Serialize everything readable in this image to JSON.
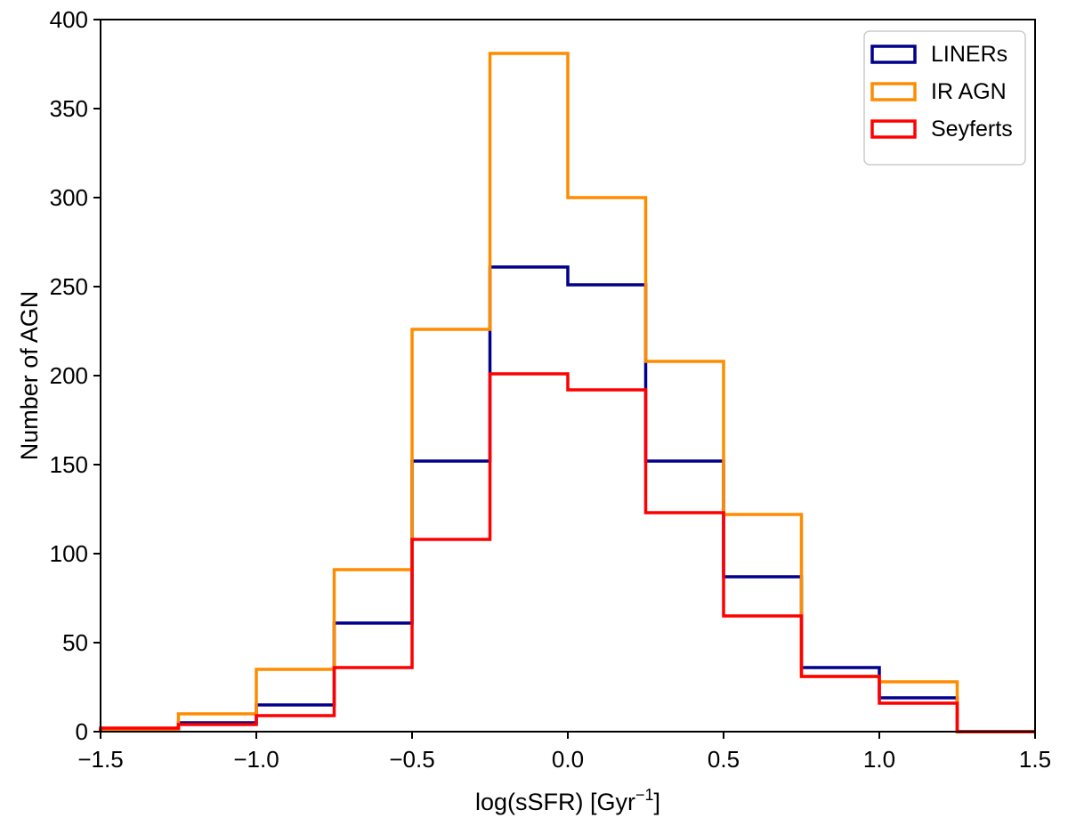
{
  "chart_data": {
    "type": "histogram",
    "title": "",
    "xlabel": "log(sSFR) [Gyr",
    "xlabel_superscript": "−1",
    "xlabel_suffix": "]",
    "ylabel": "Number of AGN",
    "xlim": [
      -1.5,
      1.5
    ],
    "ylim": [
      0,
      400
    ],
    "xticks": [
      -1.5,
      -1.0,
      -0.5,
      0.0,
      0.5,
      1.0,
      1.5
    ],
    "xtick_labels": [
      "−1.5",
      "−1.0",
      "−0.5",
      "0.0",
      "0.5",
      "1.0",
      "1.5"
    ],
    "yticks": [
      0,
      50,
      100,
      150,
      200,
      250,
      300,
      350,
      400
    ],
    "ytick_labels": [
      "0",
      "50",
      "100",
      "150",
      "200",
      "250",
      "300",
      "350",
      "400"
    ],
    "grid": false,
    "legend_position": "top-right",
    "series": [
      {
        "name": "LINERs",
        "color": "#00008b",
        "edges": [
          -1.5,
          -1.25,
          -1.0,
          -0.75,
          -0.5,
          -0.25,
          0.0,
          0.25,
          0.5,
          0.75,
          1.0,
          1.25,
          1.5
        ],
        "counts": [
          1,
          5,
          15,
          61,
          152,
          261,
          251,
          152,
          87,
          36,
          19,
          0
        ]
      },
      {
        "name": "IR AGN",
        "color": "#ff8c00",
        "edges": [
          -1.5,
          -1.25,
          -1.0,
          -0.75,
          -0.5,
          -0.25,
          0.0,
          0.25,
          0.5,
          0.75,
          1.0,
          1.25,
          1.5
        ],
        "counts": [
          1,
          10,
          35,
          91,
          226,
          381,
          300,
          208,
          122,
          31,
          28,
          0
        ]
      },
      {
        "name": "Seyferts",
        "color": "#ff0000",
        "edges": [
          -1.5,
          -1.25,
          -1.0,
          -0.75,
          -0.5,
          -0.25,
          0.0,
          0.25,
          0.5,
          0.75,
          1.0,
          1.25,
          1.5
        ],
        "counts": [
          2,
          4,
          9,
          36,
          108,
          201,
          192,
          123,
          65,
          31,
          16,
          0
        ]
      }
    ]
  }
}
